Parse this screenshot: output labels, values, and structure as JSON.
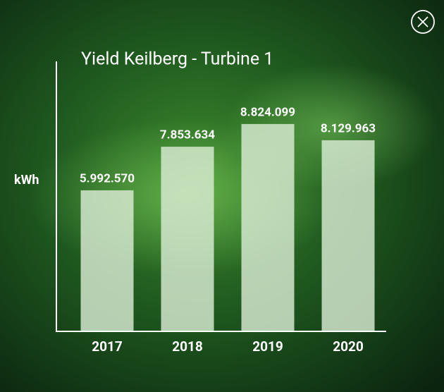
{
  "chart_data": {
    "type": "bar",
    "title": "Yield Keilberg - Turbine 1",
    "y_label": "kWh",
    "categories": [
      "2017",
      "2018",
      "2019",
      "2020"
    ],
    "values": [
      5992570,
      7853634,
      8824099,
      8129963
    ],
    "value_labels": [
      "5.992.570",
      "7.853.634",
      "8.824.099",
      "8.129.963"
    ],
    "color": "#d9ecd3",
    "ylim": [
      0,
      11500000
    ]
  }
}
